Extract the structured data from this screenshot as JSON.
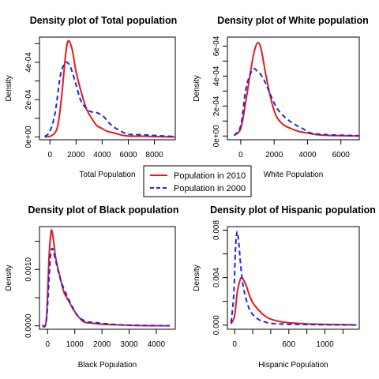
{
  "legend": {
    "entries": [
      {
        "label": "Population in 2010",
        "color": "#e41a1c",
        "dash": "solid"
      },
      {
        "label": "Population in 2000",
        "color": "#1f24e6",
        "dash": "dashed"
      }
    ]
  },
  "chart_data": [
    {
      "type": "line",
      "title": "Density plot of Total population",
      "xlabel": "Total Population",
      "ylabel": "Density",
      "xlim": [
        -800,
        9600
      ],
      "ylim": [
        -1.5e-05,
        0.000535
      ],
      "xticks": [
        0,
        2000,
        4000,
        6000,
        8000
      ],
      "yticks": [
        0,
        0.0001,
        0.0002,
        0.0003,
        0.0004,
        0.0005
      ],
      "ytick_labels": [
        "0e+00",
        "",
        "2e-04",
        "",
        "4e-04",
        ""
      ],
      "series": [
        {
          "name": "Population in 2010",
          "x": [
            -400,
            200,
            600,
            900,
            1200,
            1400,
            1700,
            2000,
            2400,
            2800,
            3200,
            3600,
            4000,
            4400,
            5000,
            5500,
            6000,
            7000,
            8000,
            9600
          ],
          "y": [
            0,
            1e-05,
            6e-05,
            0.00022,
            0.00044,
            0.000515,
            0.00047,
            0.00035,
            0.00024,
            0.00015,
            0.0001,
            6e-05,
            4.5e-05,
            3e-05,
            2e-05,
            1e-05,
            5e-06,
            4e-06,
            2e-06,
            0
          ]
        },
        {
          "name": "Population in 2000",
          "x": [
            -400,
            0,
            400,
            800,
            1100,
            1300,
            1600,
            2000,
            2400,
            3000,
            3600,
            4100,
            4600,
            5200,
            6000,
            7000,
            8000,
            9600
          ],
          "y": [
            2e-06,
            3e-05,
            0.00013,
            0.00033,
            0.00039,
            0.0004,
            0.00037,
            0.00028,
            0.00019,
            0.00014,
            0.00013,
            0.00011,
            7e-05,
            4e-05,
            1.5e-05,
            1.2e-05,
            8e-06,
            2e-06
          ]
        }
      ]
    },
    {
      "type": "line",
      "title": "Density plot of White population",
      "xlabel": "White Population",
      "ylabel": "Density",
      "xlim": [
        -800,
        7100
      ],
      "ylim": [
        -2.5e-05,
        0.00066
      ],
      "xticks": [
        0,
        2000,
        4000,
        6000
      ],
      "yticks": [
        0,
        0.0001,
        0.0002,
        0.0003,
        0.0004,
        0.0005,
        0.0006
      ],
      "ytick_labels": [
        "0e+00",
        "",
        "2e-04",
        "",
        "4e-04",
        "",
        "6e-04"
      ],
      "series": [
        {
          "name": "Population in 2010",
          "x": [
            -400,
            0,
            300,
            600,
            800,
            1000,
            1200,
            1500,
            1800,
            2100,
            2500,
            3000,
            3500,
            4000,
            4500,
            5200,
            6000,
            7100
          ],
          "y": [
            4e-06,
            5e-05,
            0.00023,
            0.00044,
            0.00056,
            0.00062,
            0.00059,
            0.00041,
            0.00025,
            0.00014,
            8e-05,
            5e-05,
            3e-05,
            2e-05,
            1e-05,
            4e-06,
            2e-06,
            0
          ]
        },
        {
          "name": "Population in 2000",
          "x": [
            -400,
            0,
            300,
            600,
            800,
            1000,
            1200,
            1500,
            1800,
            2200,
            2700,
            3200,
            3700,
            4200,
            5000,
            6000,
            7100
          ],
          "y": [
            3e-06,
            7e-05,
            0.00031,
            0.00042,
            0.00045,
            0.00043,
            0.00041,
            0.00035,
            0.00027,
            0.00018,
            0.00012,
            8e-05,
            5e-05,
            2e-05,
            1e-05,
            5e-06,
            2e-06
          ]
        }
      ]
    },
    {
      "type": "line",
      "title": "Density plot of Black population",
      "xlabel": "Black Population",
      "ylabel": "Density",
      "xlim": [
        -300,
        4700
      ],
      "ylim": [
        -6e-05,
        0.00176
      ],
      "xticks": [
        0,
        1000,
        2000,
        3000,
        4000
      ],
      "yticks": [
        0,
        0.0005,
        0.001,
        0.0015
      ],
      "ytick_labels": [
        "0.0000",
        "",
        "0.0010",
        ""
      ],
      "series": [
        {
          "name": "Population in 2010",
          "x": [
            -200,
            -50,
            50,
            100,
            150,
            220,
            300,
            450,
            600,
            800,
            1000,
            1300,
            1600,
            2000,
            2500,
            3000,
            3500,
            4000,
            4500
          ],
          "y": [
            0,
            0.0001,
            0.0012,
            0.00155,
            0.0017,
            0.0015,
            0.0012,
            0.00088,
            0.0006,
            0.00042,
            0.00025,
            8e-05,
            5e-05,
            3e-05,
            2e-05,
            1e-05,
            5e-06,
            3e-06,
            2e-06
          ]
        },
        {
          "name": "Population in 2000",
          "x": [
            -200,
            -50,
            60,
            120,
            180,
            250,
            350,
            500,
            700,
            900,
            1100,
            1400,
            1700,
            2100,
            2600,
            3200,
            3800,
            4500
          ],
          "y": [
            5e-06,
            8e-05,
            0.0009,
            0.0013,
            0.00137,
            0.00125,
            0.00105,
            0.00078,
            0.00055,
            0.00035,
            0.00018,
            8e-05,
            6e-05,
            4e-05,
            2e-05,
            1e-05,
            5e-06,
            3e-06
          ]
        }
      ]
    },
    {
      "type": "line",
      "title": "Density plot of Hispanic population",
      "xlabel": "Hispanic Population",
      "ylabel": "Density",
      "xlim": [
        -80,
        1380
      ],
      "ylim": [
        -0.00035,
        0.0083
      ],
      "xticks": [
        0,
        600,
        1000
      ],
      "minor_xticks": [
        200,
        400,
        800,
        1200
      ],
      "yticks": [
        0,
        0.002,
        0.004,
        0.006,
        0.008
      ],
      "ytick_labels": [
        "0.000",
        "",
        "0.004",
        "",
        "0.008"
      ],
      "series": [
        {
          "name": "Population in 2010",
          "x": [
            -40,
            0,
            30,
            60,
            80,
            100,
            130,
            160,
            200,
            250,
            300,
            350,
            400,
            500,
            600,
            700,
            800,
            900,
            1000,
            1200,
            1350
          ],
          "y": [
            0.0001,
            0.0008,
            0.0028,
            0.0038,
            0.004,
            0.0038,
            0.0033,
            0.0026,
            0.0019,
            0.0014,
            0.001,
            0.0007,
            0.0005,
            0.0003,
            0.0002,
            0.00015,
            0.0001,
            8e-05,
            6e-05,
            4e-05,
            2e-05
          ]
        },
        {
          "name": "Population in 2000",
          "x": [
            -40,
            -10,
            10,
            25,
            35,
            50,
            65,
            90,
            120,
            160,
            200,
            260,
            320,
            400,
            500,
            600,
            800,
            1000,
            1200,
            1350
          ],
          "y": [
            0.0002,
            0.0025,
            0.0065,
            0.0078,
            0.0076,
            0.0066,
            0.0052,
            0.0035,
            0.0024,
            0.0014,
            0.0009,
            0.0005,
            0.0003,
            0.00015,
            0.0001,
            7e-05,
            5e-05,
            3e-05,
            2e-05,
            1e-05
          ]
        }
      ]
    }
  ]
}
